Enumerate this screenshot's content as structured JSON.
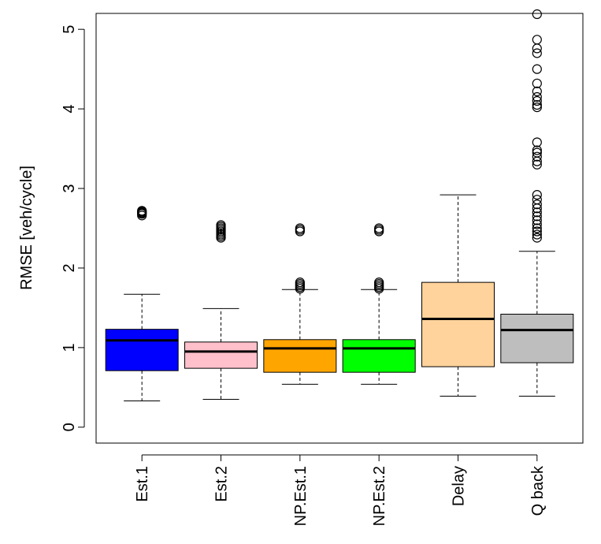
{
  "chart_data": {
    "type": "boxplot",
    "title": "",
    "xlabel": "",
    "ylabel": "RMSE [veh/cycle]",
    "ylim": [
      -0.2,
      5.2
    ],
    "yticks": [
      0,
      1,
      2,
      3,
      4,
      5
    ],
    "ytick_labels": [
      "0",
      "1",
      "2",
      "3",
      "4",
      "5"
    ],
    "categories": [
      "Est.1",
      "Est.2",
      "NP.Est.1",
      "NP.Est.2",
      "Delay",
      "Q back"
    ],
    "boxes": [
      {
        "name": "Est.1",
        "color": "#0000ff",
        "whisker_low": 0.33,
        "q1": 0.71,
        "median": 1.09,
        "q3": 1.23,
        "whisker_high": 1.67,
        "outliers": [
          2.66,
          2.68,
          2.69,
          2.7,
          2.71,
          2.72
        ]
      },
      {
        "name": "Est.2",
        "color": "#ffc0cb",
        "whisker_low": 0.35,
        "q1": 0.74,
        "median": 0.95,
        "q3": 1.07,
        "whisker_high": 1.49,
        "outliers": [
          2.38,
          2.4,
          2.42,
          2.44,
          2.46,
          2.48,
          2.5,
          2.52,
          2.54
        ]
      },
      {
        "name": "NP.Est.1",
        "color": "#ffa500",
        "whisker_low": 0.54,
        "q1": 0.69,
        "median": 0.99,
        "q3": 1.1,
        "whisker_high": 1.73,
        "outliers": [
          1.74,
          1.76,
          1.78,
          1.8,
          1.82,
          2.46,
          2.48,
          2.5
        ]
      },
      {
        "name": "NP.Est.2",
        "color": "#00ff00",
        "whisker_low": 0.54,
        "q1": 0.69,
        "median": 0.99,
        "q3": 1.1,
        "whisker_high": 1.73,
        "outliers": [
          1.74,
          1.76,
          1.78,
          1.8,
          1.82,
          2.46,
          2.48,
          2.5
        ]
      },
      {
        "name": "Delay",
        "color": "#ffd39b",
        "whisker_low": 0.39,
        "q1": 0.76,
        "median": 1.36,
        "q3": 1.82,
        "whisker_high": 2.92,
        "outliers": []
      },
      {
        "name": "Q back",
        "color": "#bebebe",
        "whisker_low": 0.39,
        "q1": 0.81,
        "median": 1.22,
        "q3": 1.42,
        "whisker_high": 2.21,
        "outliers": [
          2.38,
          2.42,
          2.46,
          2.5,
          2.55,
          2.6,
          2.65,
          2.7,
          2.75,
          2.8,
          2.86,
          2.92,
          3.3,
          3.34,
          3.4,
          3.45,
          3.48,
          3.58,
          4.02,
          4.05,
          4.1,
          4.15,
          4.22,
          4.32,
          4.5,
          4.7,
          4.76,
          4.87,
          5.19
        ]
      }
    ]
  }
}
